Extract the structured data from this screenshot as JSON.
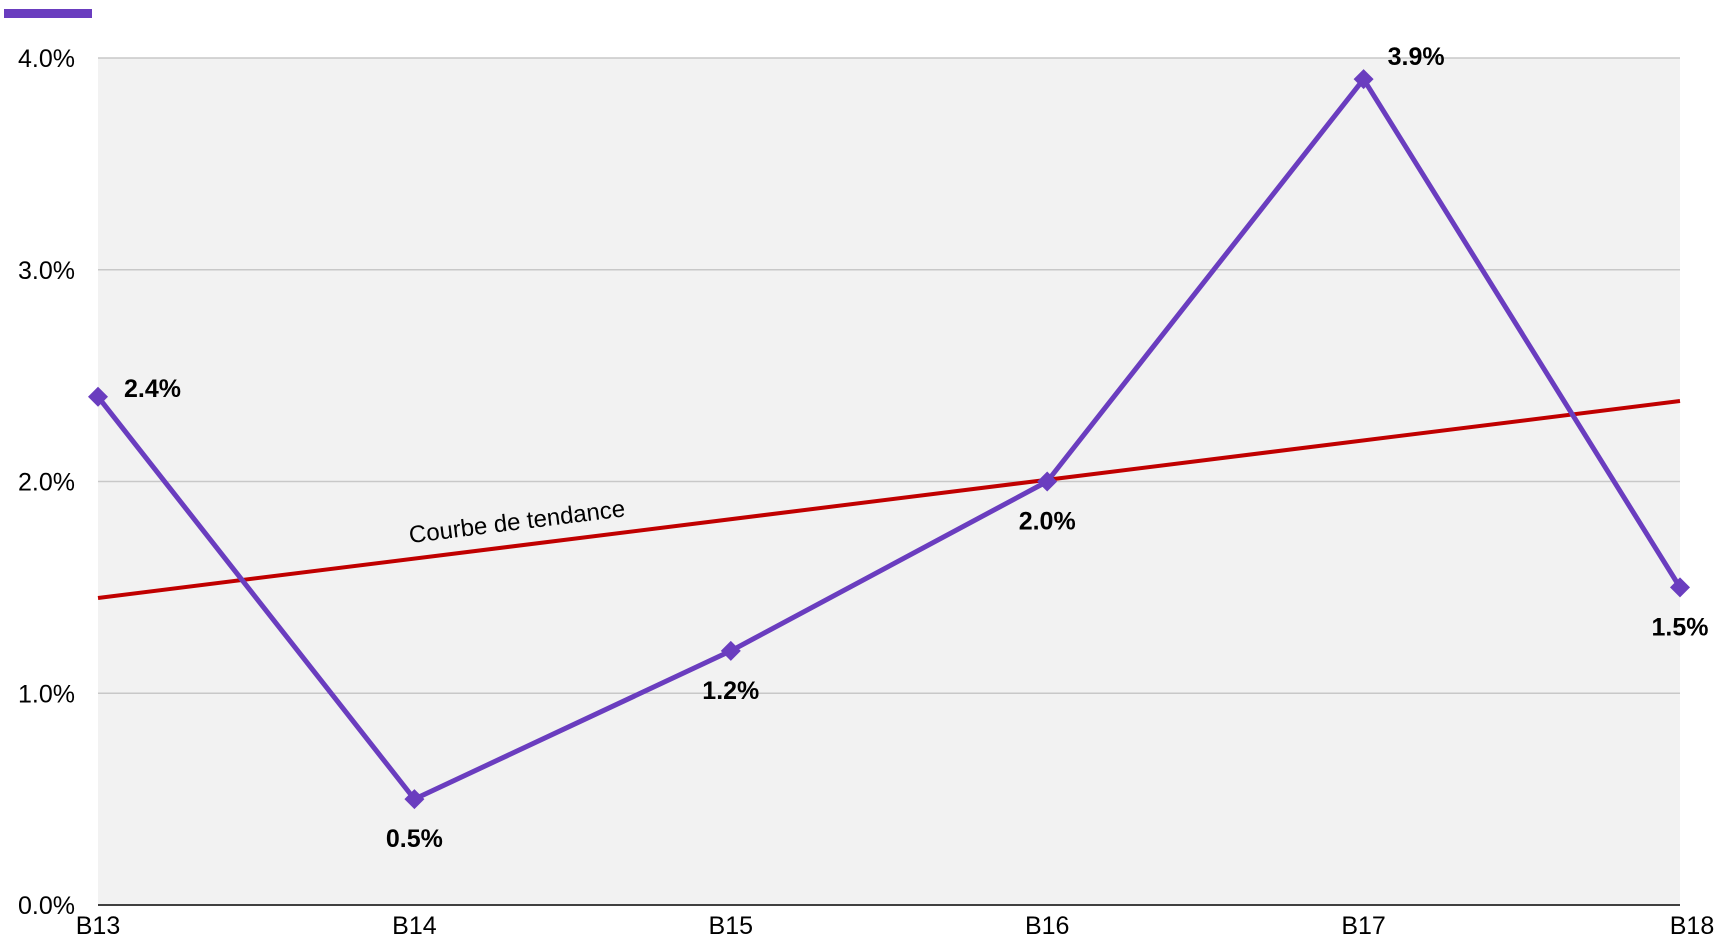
{
  "chart_data": {
    "type": "line",
    "title": "",
    "xlabel": "",
    "ylabel": "",
    "categories": [
      "B13",
      "B14",
      "B15",
      "B16",
      "B17",
      "B18"
    ],
    "series": [
      {
        "values": [
          2.4,
          0.5,
          1.2,
          2.0,
          3.9,
          1.5
        ],
        "data_labels": [
          "2.4%",
          "0.5%",
          "1.2%",
          "2.0%",
          "3.9%",
          "1.5%"
        ],
        "color": "#6a3dbf",
        "marker": "diamond"
      }
    ],
    "trendline": {
      "label": "Courbe de tendance",
      "start_value": 1.45,
      "end_value": 2.38,
      "color": "#c00000"
    },
    "ylim": [
      0,
      4
    ],
    "yticks": [
      0,
      1,
      2,
      3,
      4
    ],
    "ytick_labels": [
      "0.0%",
      "1.0%",
      "2.0%",
      "3.0%",
      "4.0%"
    ],
    "grid": true,
    "plot_background": "#f2f2f2",
    "legend": "top-left"
  }
}
